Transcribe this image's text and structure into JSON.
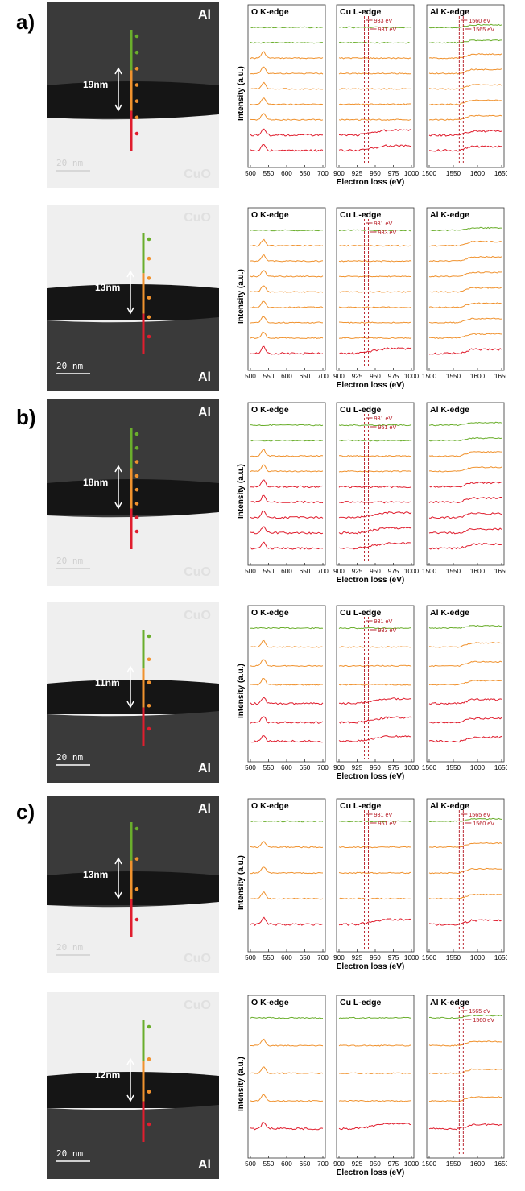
{
  "axis_title_x": "Electron loss (eV)",
  "axis_title_y": "Intensity (a.u.)",
  "edge_titles": {
    "O": "O K-edge",
    "Cu": "Cu L-edge",
    "Al": "Al K-edge"
  },
  "ticks": {
    "O": [
      "500",
      "550",
      "600",
      "650",
      "700"
    ],
    "Cu": [
      "900",
      "925",
      "950",
      "975",
      "1000"
    ],
    "Al": [
      "1500",
      "1550",
      "1600",
      "1650"
    ]
  },
  "colors": {
    "green": "#6aae2c",
    "orange": "#f0922e",
    "red": "#e01e2e",
    "dark_red": "#b4141e"
  },
  "sections": [
    {
      "label": "a)",
      "rows": [
        0,
        1
      ]
    },
    {
      "label": "b)",
      "rows": [
        2,
        3
      ]
    },
    {
      "label": "c)",
      "rows": [
        4,
        5
      ]
    }
  ],
  "rows": [
    {
      "tem": {
        "top_material": "Al",
        "bottom_material": "CuO",
        "thickness": "19nm",
        "scale_bar": "20 nm",
        "line_colors": [
          "green",
          "orange",
          "red"
        ],
        "dots": [
          "green",
          "green",
          "orange",
          "orange",
          "orange",
          "orange",
          "red"
        ]
      },
      "spectra": [
        "green",
        "green",
        "orange",
        "orange",
        "orange",
        "orange",
        "orange",
        "red",
        "red"
      ],
      "annotations": {
        "Cu": [
          {
            "text": "933 eV"
          },
          {
            "text": "931 eV"
          }
        ],
        "Al": [
          {
            "text": "1560 eV"
          },
          {
            "text": "1565 eV"
          }
        ]
      }
    },
    {
      "tem": {
        "top_material": "CuO",
        "bottom_material": "Al",
        "thickness": "13nm",
        "scale_bar": "20 nm",
        "dots": [
          "green",
          "orange",
          "orange",
          "orange",
          "orange",
          "red"
        ]
      },
      "spectra": [
        "green",
        "orange",
        "orange",
        "orange",
        "orange",
        "orange",
        "orange",
        "orange",
        "red"
      ],
      "annotations": {
        "Cu": [
          {
            "text": "931 eV"
          },
          {
            "text": "933 eV"
          }
        ],
        "Al": []
      }
    },
    {
      "tem": {
        "top_material": "Al",
        "bottom_material": "CuO",
        "thickness": "18nm",
        "scale_bar": "20 nm",
        "dots": [
          "green",
          "green",
          "orange",
          "orange",
          "orange",
          "orange",
          "red",
          "red"
        ]
      },
      "spectra": [
        "green",
        "green",
        "orange",
        "orange",
        "red",
        "red",
        "red",
        "red",
        "red"
      ],
      "annotations": {
        "Cu": [
          {
            "text": "931 eV"
          },
          {
            "text": "951 eV"
          }
        ],
        "Al": []
      }
    },
    {
      "tem": {
        "top_material": "CuO",
        "bottom_material": "Al",
        "thickness": "11nm",
        "scale_bar": "20 nm",
        "dots": [
          "green",
          "orange",
          "orange",
          "orange",
          "red"
        ]
      },
      "spectra": [
        "green",
        "orange",
        "orange",
        "orange",
        "red",
        "red",
        "red"
      ],
      "annotations": {
        "Cu": [
          {
            "text": "931 eV"
          },
          {
            "text": "933 eV"
          }
        ],
        "Al": []
      }
    },
    {
      "tem": {
        "top_material": "Al",
        "bottom_material": "CuO",
        "thickness": "13nm",
        "scale_bar": "20 nm",
        "dots": [
          "green",
          "orange",
          "orange",
          "red"
        ]
      },
      "spectra": [
        "green",
        "orange",
        "orange",
        "orange",
        "red"
      ],
      "annotations": {
        "Cu": [
          {
            "text": "931 eV"
          },
          {
            "text": "951 eV"
          }
        ],
        "Al": [
          {
            "text": "1565 eV"
          },
          {
            "text": "1560 eV"
          }
        ]
      }
    },
    {
      "tem": {
        "top_material": "CuO",
        "bottom_material": "Al",
        "thickness": "12nm",
        "scale_bar": "20 nm",
        "dots": [
          "green",
          "orange",
          "orange",
          "red"
        ]
      },
      "spectra": [
        "green",
        "orange",
        "orange",
        "orange",
        "red"
      ],
      "annotations": {
        "Cu": [],
        "Al": [
          {
            "text": "1565 eV"
          },
          {
            "text": "1560 eV"
          }
        ]
      }
    }
  ]
}
